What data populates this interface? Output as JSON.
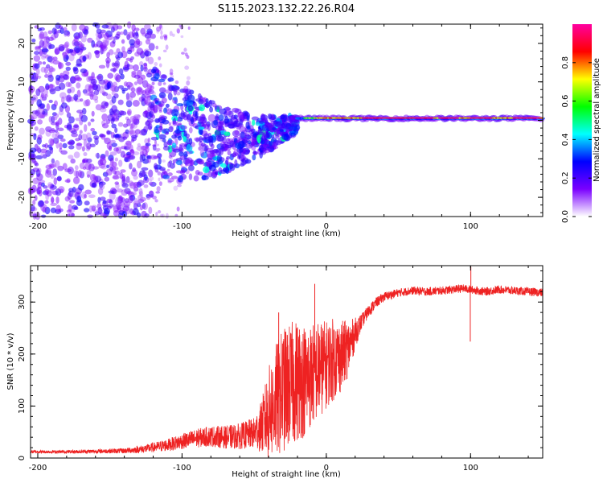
{
  "title": "S115.2023.132.22.26.R04",
  "chart_data": [
    {
      "type": "heatmap",
      "xlabel": "Height of straight line (km)",
      "ylabel": "Frequency (Hz)",
      "xlim": [
        -205,
        150
      ],
      "ylim": [
        -25,
        25
      ],
      "x_ticks": [
        -200,
        -100,
        0,
        100
      ],
      "y_ticks": [
        -20,
        -10,
        0,
        10,
        20
      ],
      "colorbar": {
        "label": "Normalized spectral amplitude",
        "range": [
          0,
          1
        ],
        "ticks": [
          0.0,
          0.2,
          0.4,
          0.6,
          0.8
        ],
        "tick_labels": [
          "0.0",
          "0.2",
          "0.4",
          "0.6",
          "0.8"
        ],
        "colors": [
          "#ffffff",
          "#7a00ff",
          "#0000ff",
          "#00ffff",
          "#00ff00",
          "#ffff00",
          "#ff0000",
          "#ff00a0"
        ]
      },
      "regions": [
        {
          "x_range": [
            -205,
            -120
          ],
          "freq_range": [
            -25,
            25
          ],
          "level": "0.1-0.35",
          "pattern": "scattered speckle"
        },
        {
          "x_range": [
            -120,
            -20
          ],
          "freq_range": [
            -15,
            10
          ],
          "level": "0.3-0.6",
          "pattern": "converging clusters"
        },
        {
          "x_range": [
            -20,
            150
          ],
          "freq_range": [
            -1,
            2
          ],
          "level": "0.9-1.0",
          "pattern": "narrow band near 0 Hz"
        }
      ]
    },
    {
      "type": "line",
      "xlabel": "Height of straight line (km)",
      "ylabel": "SNR (10 * v/v)",
      "xlim": [
        -205,
        150
      ],
      "ylim": [
        0,
        370
      ],
      "x_ticks": [
        -200,
        -100,
        0,
        100
      ],
      "y_ticks": [
        0,
        100,
        200,
        300
      ],
      "color": "#ee2222",
      "series": [
        {
          "x": [
            -205,
            -180,
            -160,
            -140,
            -125,
            -110,
            -100,
            -90,
            -80,
            -70,
            -60,
            -50,
            -45,
            -40,
            -35,
            -30,
            -25,
            -20,
            -15,
            -10,
            -5,
            0,
            5,
            10,
            15,
            20,
            25,
            30,
            35,
            40,
            50,
            60,
            70,
            80,
            90,
            95,
            100,
            105,
            110,
            120,
            130,
            140,
            150
          ],
          "values": [
            12,
            12,
            13,
            14,
            18,
            25,
            32,
            38,
            42,
            40,
            42,
            48,
            60,
            85,
            110,
            130,
            140,
            150,
            150,
            160,
            170,
            180,
            190,
            195,
            210,
            240,
            265,
            285,
            300,
            310,
            318,
            322,
            320,
            322,
            325,
            326,
            324,
            322,
            320,
            324,
            322,
            320,
            318
          ],
          "noise": [
            3,
            3,
            4,
            5,
            8,
            12,
            15,
            18,
            20,
            22,
            25,
            30,
            50,
            90,
            110,
            120,
            120,
            120,
            110,
            100,
            95,
            85,
            80,
            70,
            55,
            30,
            14,
            12,
            10,
            9,
            8,
            8,
            8,
            8,
            8,
            8,
            8,
            8,
            8,
            8,
            8,
            8,
            8
          ],
          "spikes": [
            {
              "x": 99.8,
              "value": 224
            },
            {
              "x": 100.2,
              "value": 368
            },
            {
              "x": -8,
              "value": 335
            },
            {
              "x": -33,
              "value": 280
            }
          ]
        }
      ]
    }
  ]
}
